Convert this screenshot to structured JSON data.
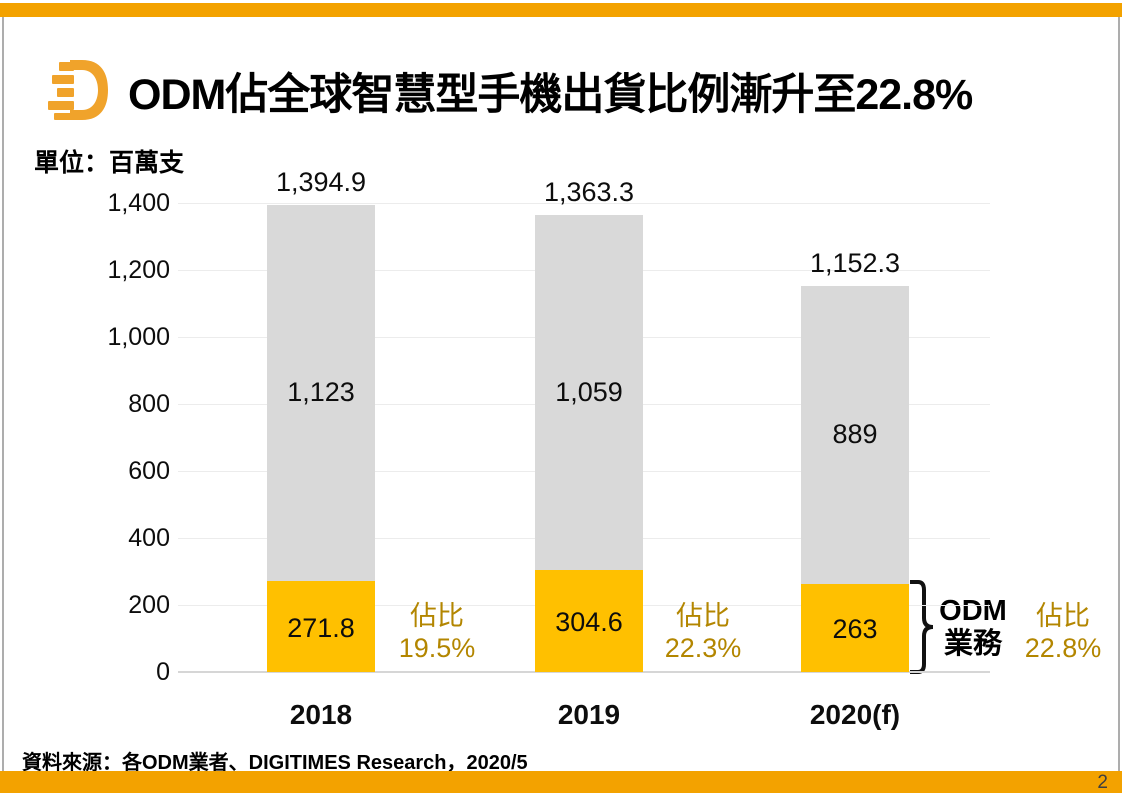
{
  "slide": {
    "title": "ODM佔全球智慧型手機出貨比例漸升至22.8%",
    "unit_label": "單位：百萬支",
    "source": "資料來源：各ODM業者、DIGITIMES Research，2020/5",
    "page_number": "2"
  },
  "colors": {
    "band_orange": "#F3A200",
    "logo_orange": "#F0A32B",
    "bar_orange": "#FFC000",
    "bar_gray": "#D9D9D9",
    "share_text_gold": "#B38600",
    "text_black": "#000000"
  },
  "chart_data": {
    "type": "bar",
    "stacked": true,
    "title": "ODM佔全球智慧型手機出貨比例漸升至22.8%",
    "unit": "百萬支",
    "categories": [
      "2018",
      "2019",
      "2020(f)"
    ],
    "series": [
      {
        "name": "ODM業務",
        "values": [
          271.8,
          304.6,
          263
        ],
        "labels": [
          "271.8",
          "304.6",
          "263"
        ],
        "color": "#FFC000"
      },
      {
        "name": "",
        "values": [
          1123,
          1059,
          889
        ],
        "labels": [
          "1,123",
          "1,059",
          "889"
        ],
        "color": "#D9D9D9"
      }
    ],
    "totals": [
      1394.9,
      1363.3,
      1152.3
    ],
    "total_labels": [
      "1,394.9",
      "1,363.3",
      "1,152.3"
    ],
    "share_title": "佔比",
    "share_labels": [
      "19.5%",
      "22.3%",
      "22.8%"
    ],
    "bracket_label_line1": "ODM",
    "bracket_label_line2": "業務",
    "ylim": [
      0,
      1400
    ],
    "yticks": [
      "0",
      "200",
      "400",
      "600",
      "800",
      "1,000",
      "1,200",
      "1,400"
    ],
    "grid": true,
    "legend": "none"
  }
}
